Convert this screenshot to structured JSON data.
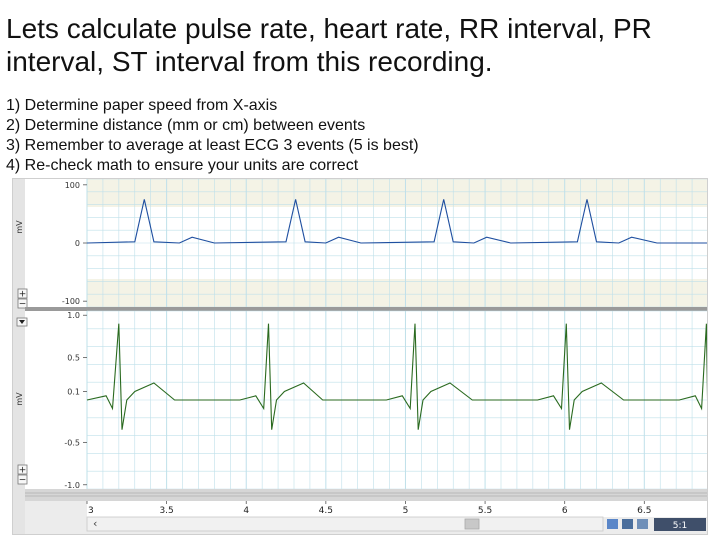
{
  "slide": {
    "title": "Lets calculate pulse rate, heart rate, RR interval, PR interval, ST interval from this recording.",
    "steps": [
      "1) Determine paper speed from X-axis",
      "2) Determine distance (mm or cm) between events",
      "3) Remember to average at least ECG 3 events (5 is best)",
      "4) Re-check math to ensure your units are correct"
    ]
  },
  "recorder": {
    "top_channel": {
      "unit": "mV",
      "ticks": [
        {
          "v": 100,
          "label": "100"
        },
        {
          "v": 0,
          "label": "0"
        },
        {
          "v": -100,
          "label": "-100"
        }
      ],
      "ylim": [
        -110,
        110
      ]
    },
    "bottom_channel": {
      "unit": "mV",
      "ticks": [
        {
          "v": 1.0,
          "label": "1.0"
        },
        {
          "v": 0.5,
          "label": "0.5"
        },
        {
          "v": 0.1,
          "label": "0.1"
        },
        {
          "v": -0.5,
          "label": "-0.5"
        },
        {
          "v": -1.0,
          "label": "-1.0"
        }
      ],
      "ylim": [
        -1.05,
        1.05
      ]
    },
    "x_axis": {
      "ticks": [
        "3",
        "3.5",
        "4",
        "4.5",
        "5",
        "5.5",
        "6",
        "6.5"
      ],
      "xlim": [
        3.0,
        6.9
      ]
    },
    "beat_times": [
      3.36,
      4.31,
      5.24,
      6.14
    ],
    "controls": {
      "plus": "+",
      "minus": "−",
      "scroll_left": "‹",
      "zoom_ratio": "5:1"
    },
    "colors": {
      "top_trace": "#1f4fa0",
      "bottom_trace": "#2a6a1f",
      "grid": "#bfe0ea",
      "top_band": "#f4f3e6"
    }
  },
  "chart_data": [
    {
      "type": "line",
      "ylabel": "mV",
      "x": [
        3.0,
        3.3,
        3.36,
        3.42,
        3.58,
        3.66,
        3.8,
        4.25,
        4.31,
        4.37,
        4.5,
        4.58,
        4.72,
        5.18,
        5.24,
        5.3,
        5.43,
        5.51,
        5.66,
        6.08,
        6.14,
        6.2,
        6.34,
        6.42,
        6.58,
        6.9
      ],
      "y": [
        0,
        2,
        75,
        2,
        0,
        10,
        0,
        2,
        75,
        2,
        0,
        10,
        0,
        2,
        75,
        2,
        0,
        10,
        0,
        2,
        75,
        2,
        0,
        10,
        0,
        0
      ],
      "ylim": [
        -110,
        110
      ],
      "xlim": [
        3.0,
        6.9
      ]
    },
    {
      "type": "line",
      "ylabel": "mV",
      "x": [
        3.0,
        3.12,
        3.16,
        3.2,
        3.22,
        3.25,
        3.3,
        3.42,
        3.55,
        3.7,
        3.96,
        4.06,
        4.11,
        4.14,
        4.16,
        4.19,
        4.24,
        4.36,
        4.48,
        4.63,
        4.88,
        4.98,
        5.03,
        5.06,
        5.08,
        5.11,
        5.16,
        5.28,
        5.42,
        5.57,
        5.83,
        5.93,
        5.98,
        6.01,
        6.03,
        6.06,
        6.11,
        6.23,
        6.37,
        6.52,
        6.72,
        6.82,
        6.86,
        6.89,
        6.9
      ],
      "y": [
        0.0,
        0.05,
        -0.1,
        0.9,
        -0.35,
        0.0,
        0.1,
        0.2,
        0.0,
        0.0,
        0.0,
        0.05,
        -0.1,
        0.9,
        -0.35,
        0.0,
        0.1,
        0.2,
        0.0,
        0.0,
        0.0,
        0.05,
        -0.1,
        0.9,
        -0.35,
        0.0,
        0.1,
        0.2,
        0.0,
        0.0,
        0.0,
        0.05,
        -0.1,
        0.9,
        -0.35,
        0.0,
        0.1,
        0.2,
        0.0,
        0.0,
        0.0,
        0.05,
        -0.1,
        0.9,
        -0.35
      ],
      "ylim": [
        -1.05,
        1.05
      ],
      "xlim": [
        3.0,
        6.9
      ]
    }
  ]
}
